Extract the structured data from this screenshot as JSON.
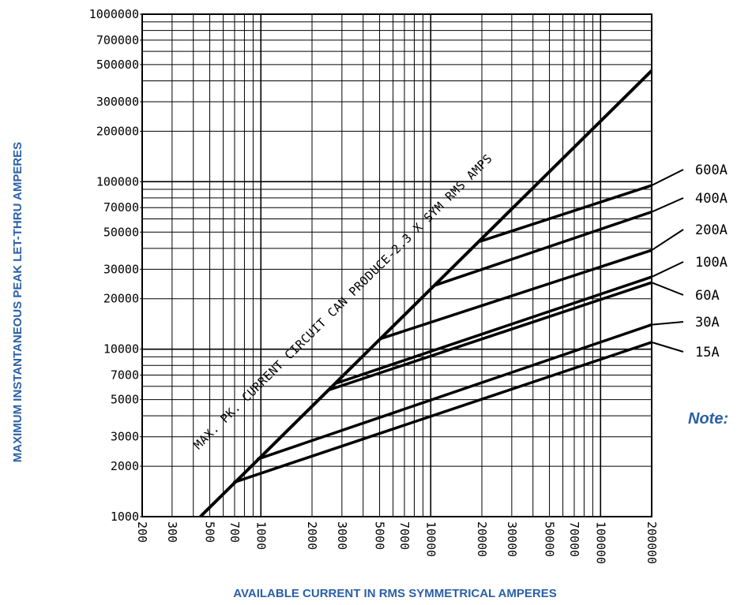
{
  "chart_data": {
    "type": "line",
    "title": "",
    "xlabel": "AVAILABLE CURRENT IN RMS SYMMETRICAL AMPERES",
    "ylabel": "MAXIMUM INSTANTANEOUS PEAK LET-THRU AMPERES",
    "x_scale": "log",
    "y_scale": "log",
    "xlim": [
      200,
      200000
    ],
    "ylim": [
      1000,
      1000000
    ],
    "x_ticks": [
      "200",
      "300",
      "500",
      "700",
      "1000",
      "2000",
      "3000",
      "5000",
      "7000",
      "10000",
      "20000",
      "30000",
      "50000",
      "70000",
      "100000",
      "200000"
    ],
    "y_ticks": [
      "1000000",
      "700000",
      "500000",
      "300000",
      "200000",
      "100000",
      "70000",
      "50000",
      "30000",
      "20000",
      "10000",
      "7000",
      "5000",
      "3000",
      "2000",
      "1000"
    ],
    "grid": true,
    "diagonal": {
      "label": "MAX. PK. CURRENT CIRCUIT CAN PRODUCE-2.3 X SYM RMS AMPS",
      "x": [
        440,
        200000
      ],
      "y": [
        1000,
        460000
      ]
    },
    "series": [
      {
        "name": "600A",
        "x": [
          19500,
          200000
        ],
        "y": [
          44000,
          95000
        ]
      },
      {
        "name": "400A",
        "x": [
          10500,
          200000
        ],
        "y": [
          24000,
          66000
        ]
      },
      {
        "name": "200A",
        "x": [
          5000,
          200000
        ],
        "y": [
          11500,
          39000
        ]
      },
      {
        "name": "100A",
        "x": [
          2700,
          200000
        ],
        "y": [
          6200,
          27000
        ]
      },
      {
        "name": "60A",
        "x": [
          2500,
          200000
        ],
        "y": [
          5700,
          25000
        ]
      },
      {
        "name": "30A",
        "x": [
          950,
          200000
        ],
        "y": [
          2200,
          14000
        ]
      },
      {
        "name": "15A",
        "x": [
          690,
          200000
        ],
        "y": [
          1600,
          11000
        ]
      }
    ],
    "note": "Note:"
  }
}
